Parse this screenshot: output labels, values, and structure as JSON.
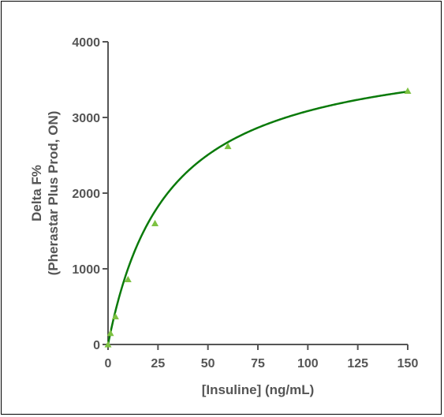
{
  "chart_data": {
    "type": "scatter",
    "title": "",
    "xlabel": "[Insuline] (ng/mL)",
    "ylabel_line1": "Delta F%",
    "ylabel_line2": "(Pherastar Plus Prod, ON)",
    "xlim": [
      0,
      150
    ],
    "ylim": [
      0,
      4000
    ],
    "x_ticks": [
      0,
      25,
      50,
      75,
      100,
      125,
      150
    ],
    "y_ticks": [
      0,
      1000,
      2000,
      3000,
      4000
    ],
    "grid": false,
    "legend": "none",
    "series": [
      {
        "marker": "triangle",
        "color": "#7dc242",
        "x": [
          0,
          1.2,
          3.7,
          10,
          23.5,
          60,
          150
        ],
        "y": [
          0,
          150,
          370,
          860,
          1600,
          2620,
          3350
        ]
      }
    ],
    "fit_curve": {
      "type": "hyperbolic",
      "color": "#0a7a0a",
      "bmax": 4010,
      "kd": 30
    }
  }
}
